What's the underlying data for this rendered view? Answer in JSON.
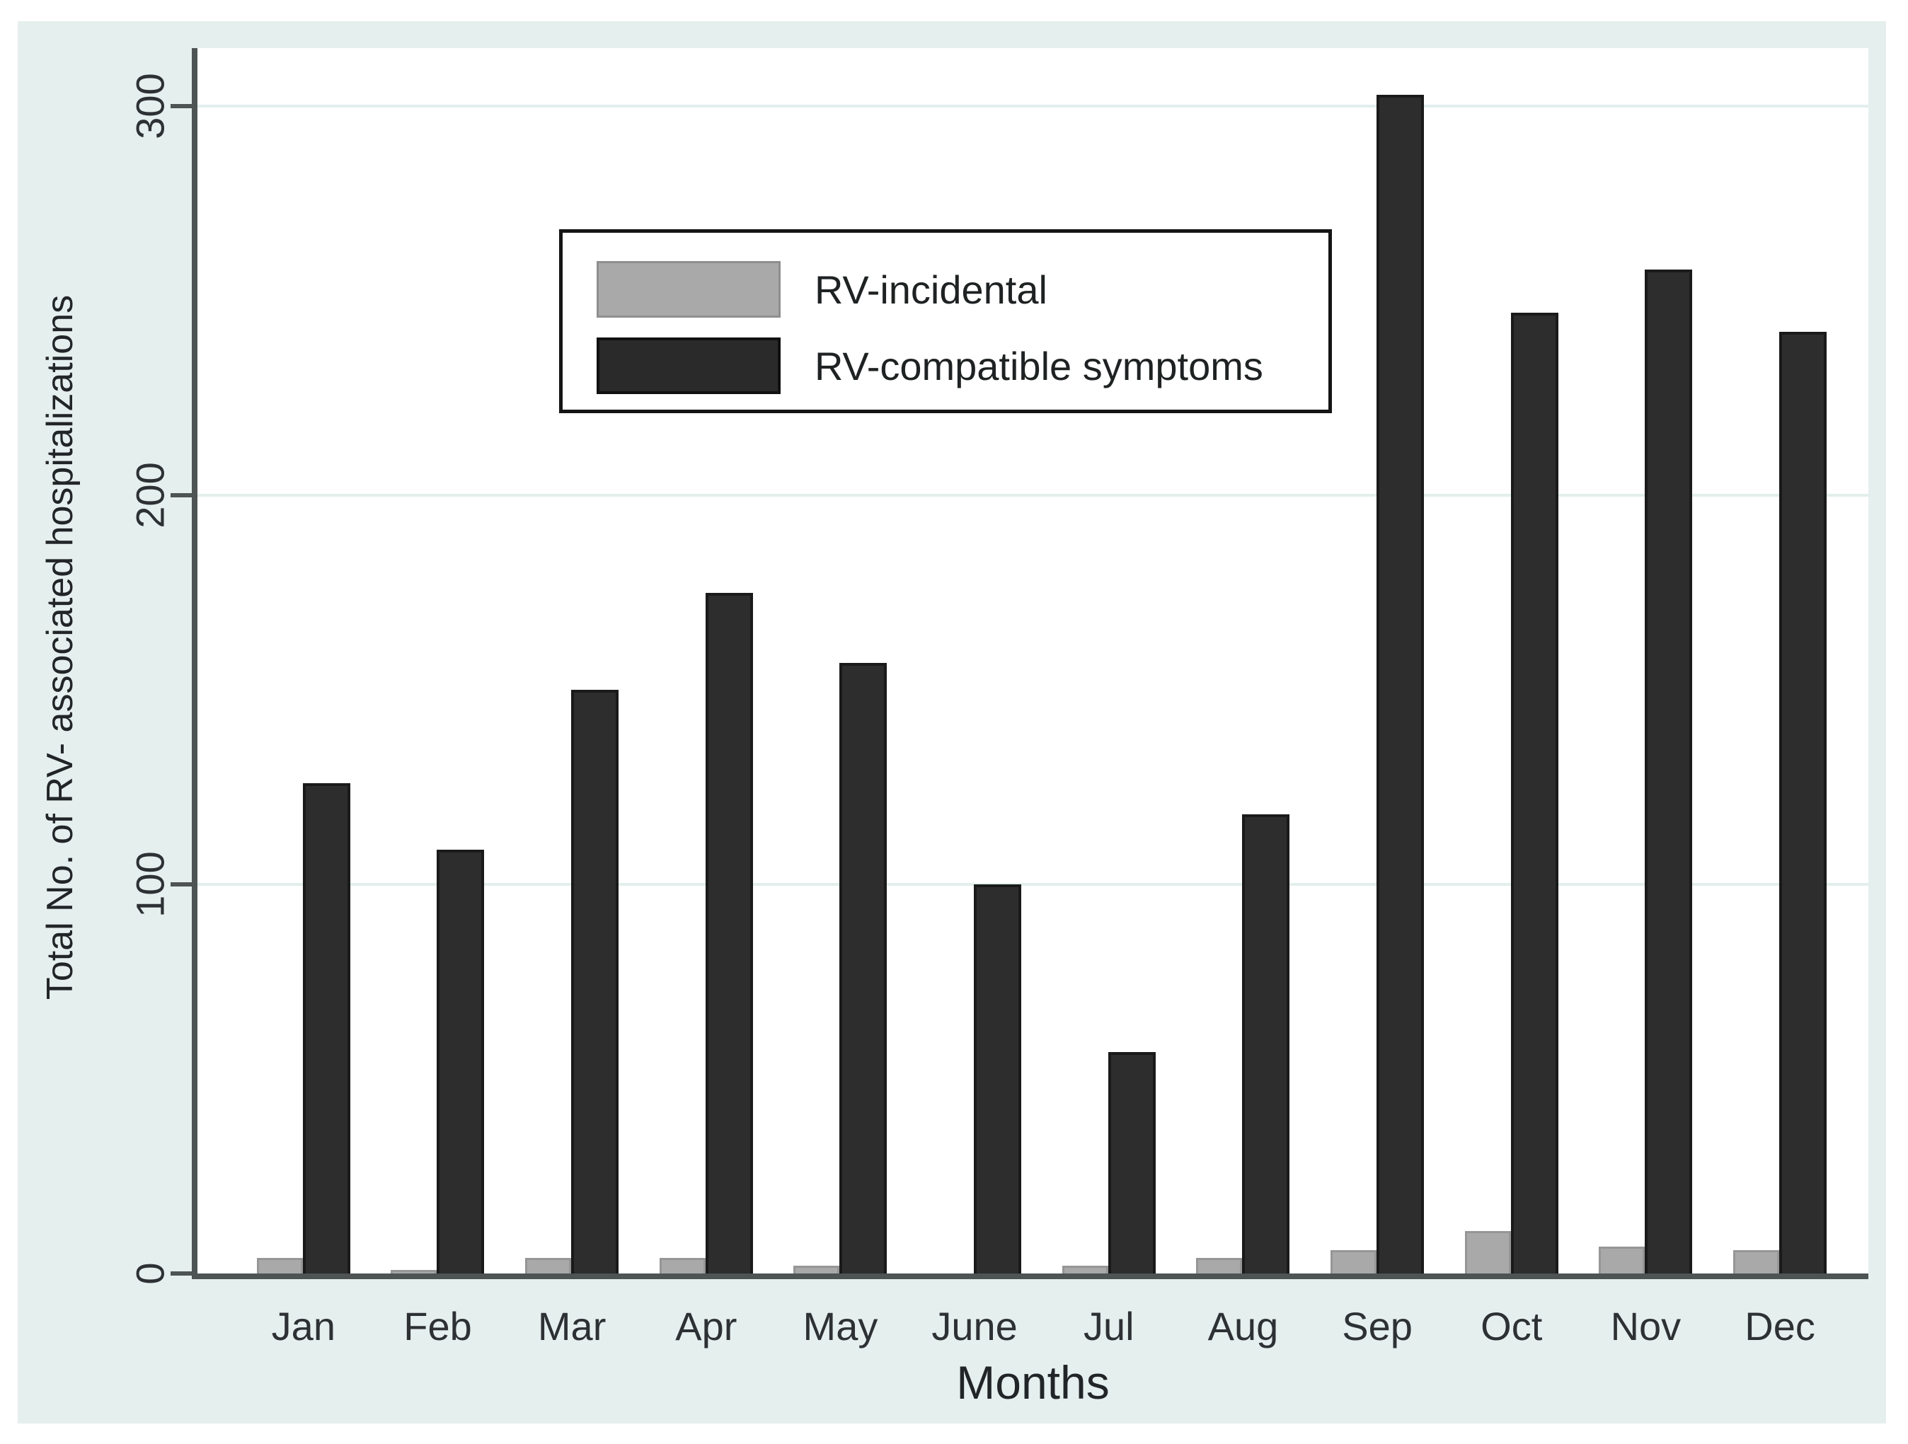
{
  "figure": {
    "y_axis": {
      "title": "Total No. of RV- associated hospitalizations",
      "tick_labels": [
        "0",
        "100",
        "200",
        "300"
      ]
    },
    "x_axis": {
      "title": "Months",
      "labels": [
        "Jan",
        "Feb",
        "Mar",
        "Apr",
        "May",
        "June",
        "Jul",
        "Aug",
        "Sep",
        "Oct",
        "Nov",
        "Dec"
      ]
    },
    "legend": {
      "items": [
        {
          "label": "RV-incidental",
          "swatch_color": "#a9a9a9"
        },
        {
          "label": "RV-compatible symptoms",
          "swatch_color": "#2d2d2d"
        }
      ]
    }
  },
  "chart_data": {
    "type": "bar",
    "categories": [
      "Jan",
      "Feb",
      "Mar",
      "Apr",
      "May",
      "June",
      "Jul",
      "Aug",
      "Sep",
      "Oct",
      "Nov",
      "Dec"
    ],
    "series": [
      {
        "name": "RV-incidental",
        "color": "#a9a9a9",
        "values": [
          4,
          1,
          4,
          4,
          2,
          0,
          2,
          4,
          6,
          11,
          7,
          6
        ]
      },
      {
        "name": "RV-compatible symptoms",
        "color": "#2d2d2d",
        "values": [
          126,
          109,
          150,
          175,
          157,
          100,
          57,
          118,
          303,
          247,
          258,
          242
        ]
      }
    ],
    "title": "",
    "xlabel": "Months",
    "ylabel": "Total No. of RV- associated hospitalizations",
    "ylim": [
      0,
      315
    ],
    "yticks": [
      0,
      100,
      200,
      300
    ],
    "grid": "horizontal",
    "legend_position": "inside-top-left"
  },
  "colors": {
    "panel_background": "#e5efed",
    "plot_background": "#ffffff",
    "gridline": "#e2efec",
    "axis_line": "#4d5453",
    "bar_incidental": "#a9a9a9",
    "bar_compatible": "#2d2d2d",
    "text": "#2d3134",
    "legend_border": "#151515"
  }
}
